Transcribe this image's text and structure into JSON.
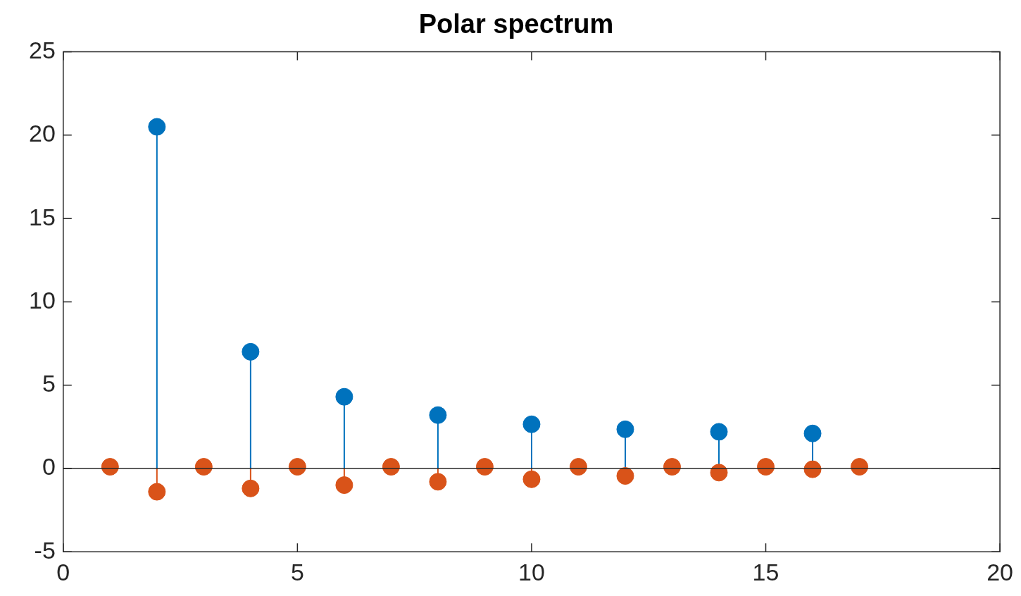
{
  "chart_data": {
    "type": "lollipop",
    "title": "Polar spectrum",
    "xlim": [
      0,
      20
    ],
    "xticks": [
      0,
      5,
      10,
      15,
      20
    ],
    "ylim": [
      -5,
      25
    ],
    "yticks": [
      -5,
      0,
      5,
      10,
      15,
      20,
      25
    ],
    "marker": "circle",
    "series": [
      {
        "color": "#0072bd",
        "x": [
          2,
          4,
          6,
          8,
          10,
          12,
          14,
          16
        ],
        "values": [
          20.5,
          7.0,
          4.3,
          3.2,
          2.65,
          2.35,
          2.2,
          2.1
        ]
      },
      {
        "color": "#d95319",
        "x": [
          1,
          2,
          3,
          4,
          5,
          6,
          7,
          8,
          9,
          10,
          11,
          12,
          13,
          14,
          15,
          16,
          17
        ],
        "values": [
          0.1,
          -1.4,
          0.1,
          -1.2,
          0.1,
          -1.0,
          0.1,
          -0.8,
          0.1,
          -0.65,
          0.1,
          -0.45,
          0.1,
          -0.25,
          0.1,
          -0.05,
          0.1
        ]
      }
    ]
  }
}
